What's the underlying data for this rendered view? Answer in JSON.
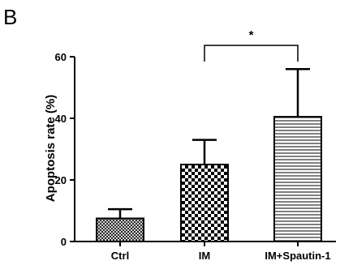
{
  "panel_label": "B",
  "chart_data": {
    "type": "bar",
    "title": "",
    "xlabel": "",
    "ylabel": "Apoptosis rate (%)",
    "ylim": [
      0,
      60
    ],
    "yticks": [
      "0",
      "20",
      "40",
      "60"
    ],
    "categories": [
      "Ctrl",
      "IM",
      "IM+Spautin-1"
    ],
    "values": [
      7.5,
      25,
      40.5
    ],
    "error_upper": [
      10.5,
      33,
      56
    ],
    "bar_patterns": [
      "fine-crosshatch",
      "checkerboard",
      "horizontal-lines"
    ],
    "significance": [
      {
        "between": [
          "IM",
          "IM+Spautin-1"
        ],
        "label": "*"
      }
    ],
    "grid": false,
    "legend": "none"
  }
}
